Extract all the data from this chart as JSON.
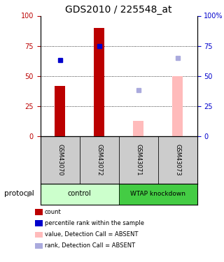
{
  "title": "GDS2010 / 225548_at",
  "samples": [
    "GSM43070",
    "GSM43072",
    "GSM43071",
    "GSM43073"
  ],
  "red_bars": [
    42,
    90,
    null,
    null
  ],
  "pink_bars": [
    null,
    null,
    13,
    50
  ],
  "blue_squares": [
    63,
    75,
    null,
    null
  ],
  "lightblue_squares": [
    null,
    null,
    38,
    65
  ],
  "ylim": [
    0,
    100
  ],
  "yticks": [
    0,
    25,
    50,
    75,
    100
  ],
  "bar_width": 0.28,
  "red_color": "#bb0000",
  "pink_color": "#ffbbbb",
  "blue_color": "#0000cc",
  "lightblue_color": "#aaaadd",
  "title_fontsize": 10,
  "legend_items": [
    {
      "color": "#bb0000",
      "label": "count"
    },
    {
      "color": "#0000cc",
      "label": "percentile rank within the sample"
    },
    {
      "color": "#ffbbbb",
      "label": "value, Detection Call = ABSENT"
    },
    {
      "color": "#aaaadd",
      "label": "rank, Detection Call = ABSENT"
    }
  ],
  "protocol_label": "protocol",
  "sample_bg_color": "#cccccc",
  "group_bg_color_control": "#ccffcc",
  "group_bg_color_wtap": "#44cc44",
  "ctrl_label": "control",
  "wtap_label": "WTAP knockdown"
}
